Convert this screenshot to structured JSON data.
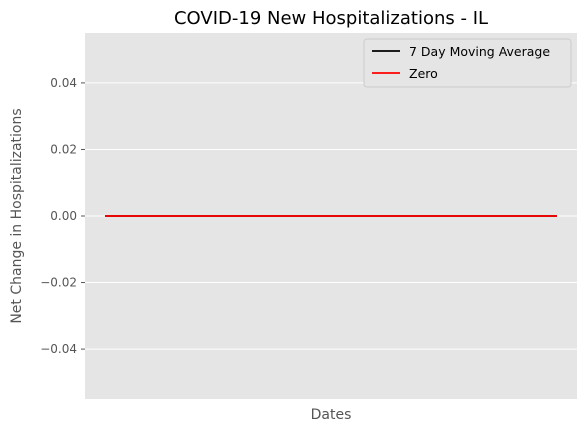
{
  "chart_data": {
    "type": "line",
    "title": "COVID-19 New Hospitalizations - IL",
    "xlabel": "Dates",
    "ylabel": "Net Change in Hospitalizations",
    "ylim": [
      -0.055,
      0.055
    ],
    "yticks": [
      {
        "value": 0.04,
        "label": "0.04"
      },
      {
        "value": 0.02,
        "label": "0.02"
      },
      {
        "value": 0.0,
        "label": "0.00"
      },
      {
        "value": -0.02,
        "label": "−0.02"
      },
      {
        "value": -0.04,
        "label": "−0.04"
      }
    ],
    "grid": true,
    "legend_position": "top-right",
    "series": [
      {
        "name": "7 Day Moving Average",
        "color": "#000000",
        "values": [
          0,
          0
        ]
      },
      {
        "name": "Zero",
        "color": "#ff0000",
        "values": [
          0,
          0
        ]
      }
    ]
  }
}
